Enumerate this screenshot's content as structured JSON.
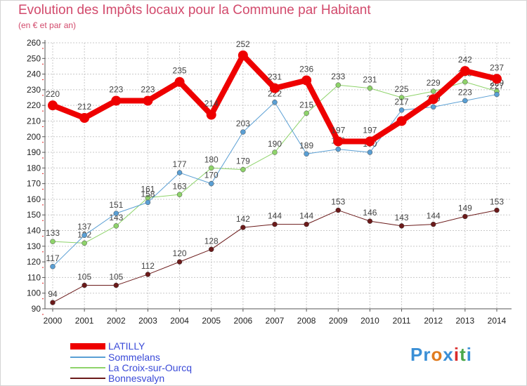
{
  "header": {
    "title": "Evolution des Impôts locaux pour la Commune par Habitant",
    "subtitle": "(en € et par an)"
  },
  "colors": {
    "title": "#d24a6c",
    "grid": "#c8c8c8",
    "axis_tick_red": "#e02020"
  },
  "logo": {
    "text": "Proxiti",
    "letters": [
      "P",
      "r",
      "o",
      "x",
      "i",
      "t",
      "i"
    ],
    "letter_colors": [
      "#3a8fd6",
      "#3a8fd6",
      "#e07b1f",
      "#3a8fd6",
      "#d92b2b",
      "#4aa84a",
      "#3a8fd6"
    ]
  },
  "chart_data": {
    "type": "line",
    "title": "Evolution des Impôts locaux pour la Commune par Habitant",
    "subtitle": "(en € et par an)",
    "xlabel": "",
    "ylabel": "",
    "x": [
      "2000",
      "2001",
      "2002",
      "2003",
      "2004",
      "2005",
      "2006",
      "2007",
      "2008",
      "2009",
      "2010",
      "2011",
      "2012",
      "2013",
      "2014"
    ],
    "ylim": [
      90,
      260
    ],
    "yticks": [
      90,
      100,
      110,
      120,
      130,
      140,
      150,
      160,
      170,
      180,
      190,
      200,
      210,
      220,
      230,
      240,
      250,
      260
    ],
    "grid": true,
    "legend_placement": "bottom-left",
    "series": [
      {
        "name": "Bonnesvalyn",
        "color": "#6b1a1a",
        "width": 1,
        "marker": 3.5,
        "values": [
          94,
          105,
          105,
          112,
          120,
          128,
          142,
          144,
          144,
          153,
          146,
          143,
          144,
          149,
          153
        ],
        "labels": [
          "94",
          "105",
          "105",
          "112",
          "120",
          "128",
          "142",
          "144",
          "144",
          "153",
          "146",
          "143",
          "144",
          "149",
          "153"
        ]
      },
      {
        "name": "La Croix-sur-Ourcq",
        "color": "#8ed36a",
        "width": 1,
        "marker": 3.5,
        "values": [
          133,
          132,
          143,
          161,
          163,
          180,
          179,
          190,
          215,
          233,
          231,
          225,
          229,
          235,
          229
        ],
        "labels": [
          "133",
          "132",
          "143",
          "161",
          "163",
          "180",
          "179",
          "190",
          "215",
          "233",
          "231",
          "225",
          "229",
          "235",
          "229"
        ]
      },
      {
        "name": "Sommelans",
        "color": "#5a9fd4",
        "width": 1,
        "marker": 3.5,
        "values": [
          117,
          137,
          151,
          158,
          177,
          170,
          203,
          222,
          189,
          192,
          190,
          217,
          219,
          223,
          227
        ],
        "labels": [
          "117",
          "137",
          "151",
          "158",
          "177",
          "170",
          "203",
          "222",
          "189",
          "192",
          "190",
          "217",
          "219",
          "223",
          "227"
        ]
      },
      {
        "name": "LATILLY",
        "color": "#ee0000",
        "width": 8,
        "marker": 7,
        "values": [
          220,
          212,
          223,
          223,
          235,
          214,
          252,
          231,
          236,
          197,
          197,
          210,
          224,
          242,
          237
        ],
        "labels": [
          "220",
          "212",
          "223",
          "223",
          "235",
          "214",
          "252",
          "231",
          "236",
          "197",
          "197",
          "",
          "",
          "242",
          "237"
        ]
      }
    ]
  },
  "legend": [
    {
      "name": "LATILLY",
      "color": "#ee0000",
      "thickness": 9,
      "label_color": "#3a4ad8"
    },
    {
      "name": "Sommelans",
      "color": "#5a9fd4",
      "thickness": 2,
      "label_color": "#3a4ad8"
    },
    {
      "name": "La Croix-sur-Ourcq",
      "color": "#8ed36a",
      "thickness": 2,
      "label_color": "#3a4ad8"
    },
    {
      "name": "Bonnesvalyn",
      "color": "#6b1a1a",
      "thickness": 2,
      "label_color": "#3a4ad8"
    }
  ]
}
